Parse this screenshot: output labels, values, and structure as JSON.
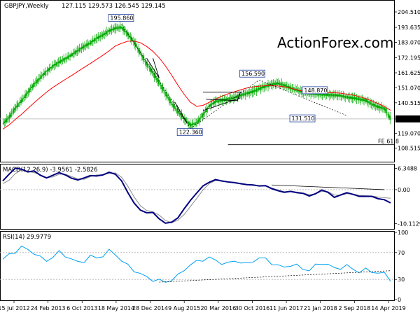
{
  "chart_data": [
    {
      "type": "candlestick",
      "title": "GBPJPY,Weekly",
      "ohlc_text": "127.115 129.573 126.545 129.145",
      "watermark": "ActionForex.com",
      "ylim": [
        100,
        206
      ],
      "yticks": [
        "204.510",
        "193.635",
        "183.070",
        "172.195",
        "161.625",
        "151.070",
        "140.515",
        "129.145",
        "119.070",
        "108.515"
      ],
      "ytick_values": [
        204.51,
        193.635,
        183.07,
        172.195,
        161.625,
        151.07,
        140.515,
        129.145,
        119.07,
        108.515
      ],
      "last_price": "129.145",
      "annotations": [
        {
          "text": "195.860",
          "x": 0.39,
          "value": 195.86
        },
        {
          "text": "122.360",
          "x": 0.56,
          "value": 122.36
        },
        {
          "text": "156.590",
          "x": 0.72,
          "value": 156.59
        },
        {
          "text": "148.870",
          "x": 0.87,
          "value": 148.87
        },
        {
          "text": "131.510",
          "x": 0.84,
          "value": 131.51
        },
        {
          "text": "FE 61.8",
          "x": 0.99,
          "value": 111.0
        }
      ],
      "close_series": [
        125.5,
        130.2,
        136.8,
        141.9,
        147.8,
        153.5,
        158.2,
        162.7,
        166.4,
        169.1,
        171.6,
        174.2,
        177.3,
        180.2,
        182.7,
        185.9,
        188.2,
        191.2,
        193.1,
        193.6,
        188.7,
        183.2,
        175.3,
        167.7,
        161.5,
        154.4,
        147.3,
        140.0,
        134.2,
        129.4,
        124.8,
        126.3,
        132.0,
        138.2,
        141.4,
        142.3,
        143.1,
        144.0,
        145.7,
        147.1,
        148.4,
        150.4,
        152.1,
        153.5,
        154.2,
        152.9,
        150.9,
        149.5,
        148.1,
        147.2,
        146.7,
        146.5,
        146.1,
        145.9,
        145.6,
        144.4,
        143.9,
        143.1,
        142.2,
        139.6,
        137.6,
        136.6,
        129.1
      ],
      "ma_series": [
        121.9,
        124.9,
        128.8,
        132.4,
        136.5,
        140.5,
        144.3,
        148.0,
        151.3,
        154.2,
        157.0,
        159.7,
        162.6,
        165.4,
        168.2,
        171.1,
        174.0,
        177.1,
        180.5,
        182.4,
        183.9,
        184.0,
        182.8,
        180.2,
        176.7,
        172.2,
        166.5,
        159.9,
        152.9,
        146.4,
        140.9,
        138.0,
        138.7,
        140.8,
        143.1,
        145.1,
        146.8,
        148.2,
        149.6,
        150.9,
        151.7,
        152.2,
        152.5,
        152.5,
        152.3,
        151.7,
        150.9,
        149.6,
        148.7,
        148.3,
        148.1,
        147.9,
        147.7,
        147.6,
        147.3,
        146.6,
        145.9,
        144.9,
        143.5,
        141.8,
        140.0,
        137.9,
        135.2
      ]
    },
    {
      "type": "line",
      "title": "MACD(12,26,9) -3.9561 -2.5826",
      "ylim": [
        -11.5,
        7.3
      ],
      "yticks": [
        "6.3488",
        "0.00",
        "-10.1129"
      ],
      "ytick_values": [
        6.3488,
        0,
        -10.1129
      ],
      "zero_line": 0,
      "macd": [
        2.6,
        4.6,
        6.4,
        6.1,
        5.3,
        5.6,
        4.3,
        3.5,
        4.3,
        5.1,
        4.4,
        3.4,
        2.9,
        3.5,
        4.2,
        4.1,
        4.4,
        5.2,
        4.6,
        2.6,
        -0.9,
        -4.0,
        -6.1,
        -6.9,
        -6.8,
        -8.7,
        -10.0,
        -9.7,
        -8.4,
        -5.7,
        -3.2,
        -1.0,
        1.1,
        2.2,
        3.0,
        2.6,
        2.3,
        2.1,
        1.8,
        1.5,
        1.4,
        1.1,
        1.2,
        0.3,
        -0.3,
        -0.8,
        -0.5,
        -0.9,
        -1.1,
        -1.9,
        -1.2,
        -0.1,
        -0.8,
        -2.3,
        -1.6,
        -0.9,
        -1.4,
        -2.0,
        -2.0,
        -2.0,
        -2.7,
        -3.0,
        -3.96
      ],
      "signal": [
        1.8,
        2.8,
        4.8,
        5.9,
        5.4,
        5.1,
        4.5,
        3.6,
        3.8,
        4.6,
        4.6,
        3.9,
        3.2,
        3.1,
        3.9,
        4.4,
        4.4,
        4.9,
        5.0,
        3.7,
        1.0,
        -2.2,
        -4.8,
        -6.2,
        -6.6,
        -7.6,
        -9.2,
        -9.9,
        -9.1,
        -7.4,
        -5.0,
        -2.6,
        -0.1,
        1.8,
        2.7,
        2.7,
        2.4,
        2.2,
        1.9,
        1.6,
        1.5,
        1.2,
        1.2,
        0.5,
        -0.1,
        -0.6,
        -0.5,
        -0.7,
        -1.0,
        -1.5,
        -1.3,
        -0.5,
        -0.6,
        -1.6,
        -1.7,
        -1.2,
        -1.3,
        -1.7,
        -1.8,
        -1.9,
        -2.2,
        -2.4,
        -2.58
      ]
    },
    {
      "type": "line",
      "title": "RSI(14) 29.9779",
      "ylim": [
        0,
        100
      ],
      "yticks": [
        "100",
        "70",
        "30",
        "0"
      ],
      "ytick_values": [
        100,
        70,
        30,
        0
      ],
      "levels": [
        70,
        30
      ],
      "rsi": [
        60,
        66,
        72,
        78,
        74,
        70,
        62,
        58,
        64,
        70,
        66,
        60,
        55,
        58,
        64,
        62,
        66,
        72,
        68,
        58,
        50,
        44,
        38,
        33,
        30,
        28,
        26,
        30,
        35,
        45,
        52,
        56,
        60,
        62,
        58,
        55,
        53,
        58,
        56,
        52,
        58,
        62,
        60,
        55,
        50,
        48,
        52,
        50,
        46,
        44,
        50,
        55,
        52,
        46,
        48,
        50,
        45,
        42,
        44,
        42,
        40,
        38,
        30
      ]
    }
  ],
  "x_axis": {
    "labels": [
      "15 Jul 2012",
      "24 Feb 2013",
      "6 Oct 2013",
      "18 May 2014",
      "28 Dec 2014",
      "9 Aug 2015",
      "20 Mar 2016",
      "30 Oct 2016",
      "11 Jun 2017",
      "21 Jan 2018",
      "2 Sep 2018",
      "14 Apr 2019"
    ]
  },
  "colors": {
    "candles": "#00aa00",
    "moving_average": "#ff0000",
    "macd": "#000080",
    "signal": "#8a8a8a",
    "rsi": "#00a0f0",
    "trendline": "#000000",
    "watermark": "#c8c8c8",
    "grid": "#b0b0b0"
  }
}
